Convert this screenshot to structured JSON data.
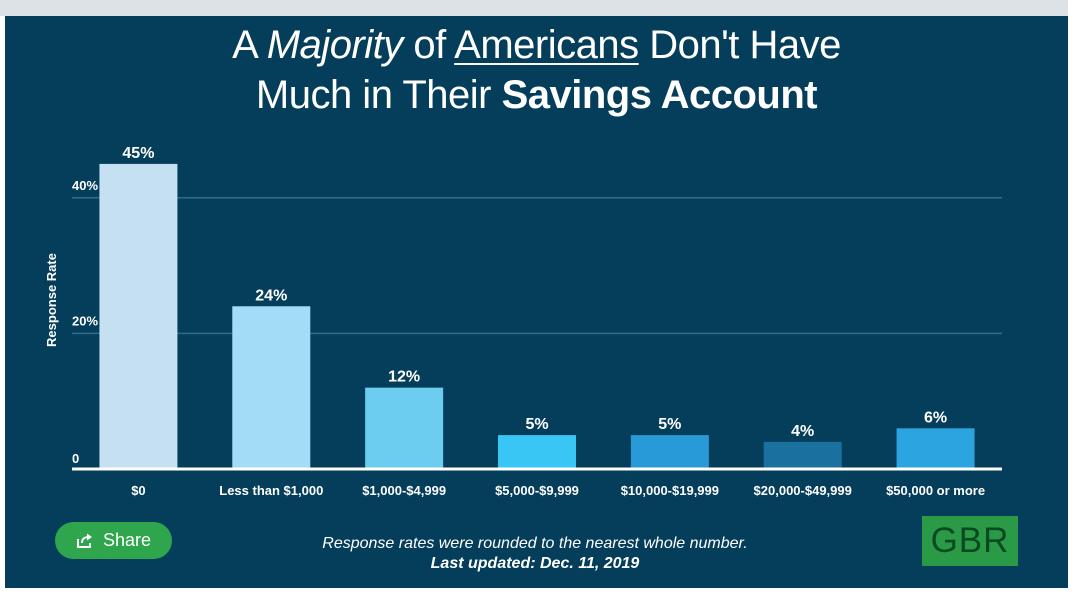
{
  "title": {
    "part1": "A ",
    "majority": "Majority",
    "part2": " of ",
    "americans": "Americans",
    "part3": " Don't Have",
    "line2_part": "Much in Their ",
    "line2_bold": "Savings Account"
  },
  "chart_data": {
    "type": "bar",
    "categories": [
      "$0",
      "Less than $1,000",
      "$1,000-$4,999",
      "$5,000-$9,999",
      "$10,000-$19,999",
      "$20,000-$49,999",
      "$50,000 or more"
    ],
    "values": [
      45,
      24,
      12,
      5,
      5,
      4,
      6
    ],
    "data_labels": [
      "45%",
      "24%",
      "12%",
      "5%",
      "5%",
      "4%",
      "6%"
    ],
    "bar_colors": [
      "#c5e0f0",
      "#a3dcf7",
      "#6dcdf0",
      "#3ac6f5",
      "#279ad7",
      "#1a71a0",
      "#2ca4df"
    ],
    "ylabel": "Response Rate",
    "ylim": [
      0,
      50
    ],
    "yticks": [
      0,
      20,
      40
    ],
    "ytick_labels": [
      "0",
      "20%",
      "40%"
    ],
    "grid": true,
    "legend": "none"
  },
  "share": {
    "label": "Share",
    "icon": "share-icon"
  },
  "footer": {
    "note": "Response rates were rounded to the nearest whole number.",
    "updated": "Last updated: Dec. 11, 2019"
  },
  "logo": {
    "text": "GBR"
  },
  "colors": {
    "background": "#053e5a",
    "share_button": "#2fa64d",
    "logo": "#2a9a47",
    "grid": "#2d6e8a"
  }
}
